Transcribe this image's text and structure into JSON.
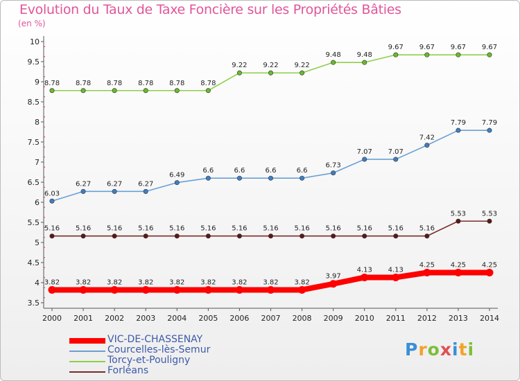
{
  "title": "Evolution du Taux de Taxe Foncière sur les Propriétés Bâties",
  "unit_label": "(en %)",
  "logo_text": "Proxiti",
  "chart_data": {
    "type": "line",
    "x": [
      2000,
      2001,
      2002,
      2003,
      2004,
      2005,
      2006,
      2007,
      2008,
      2009,
      2010,
      2011,
      2012,
      2013,
      2014
    ],
    "ylim": [
      3.5,
      10
    ],
    "yticks": [
      3.5,
      4,
      4.5,
      5,
      5.5,
      6,
      6.5,
      7,
      7.5,
      8,
      8.5,
      9,
      9.5,
      10
    ],
    "grid": false,
    "legend_position": "bottom-left",
    "series": [
      {
        "name": "Torcy-et-Pouligny",
        "color": "#8fce4a",
        "marker": "#6abb2a",
        "width": 1.6,
        "values": [
          8.78,
          8.78,
          8.78,
          8.78,
          8.78,
          8.78,
          9.22,
          9.22,
          9.22,
          9.48,
          9.48,
          9.67,
          9.67,
          9.67,
          9.67
        ]
      },
      {
        "name": "Courcelles-lès-Semur",
        "color": "#6a9fd4",
        "marker": "#3f7ec2",
        "width": 1.6,
        "values": [
          6.03,
          6.27,
          6.27,
          6.27,
          6.49,
          6.6,
          6.6,
          6.6,
          6.6,
          6.73,
          7.07,
          7.07,
          7.42,
          7.79,
          7.79
        ]
      },
      {
        "name": "Forléans",
        "color": "#7a2a2a",
        "marker": "#5a1818",
        "width": 1.6,
        "values": [
          5.16,
          5.16,
          5.16,
          5.16,
          5.16,
          5.16,
          5.16,
          5.16,
          5.16,
          5.16,
          5.16,
          5.16,
          5.16,
          5.53,
          5.53
        ]
      },
      {
        "name": "VIC-DE-CHASSENAY",
        "color": "#ff0000",
        "marker": "#ff0000",
        "width": 8,
        "values": [
          3.82,
          3.82,
          3.82,
          3.82,
          3.82,
          3.82,
          3.82,
          3.82,
          3.82,
          3.97,
          4.13,
          4.13,
          4.25,
          4.25,
          4.25
        ]
      }
    ],
    "legend_order": [
      "VIC-DE-CHASSENAY",
      "Courcelles-lès-Semur",
      "Torcy-et-Pouligny",
      "Forléans"
    ]
  }
}
